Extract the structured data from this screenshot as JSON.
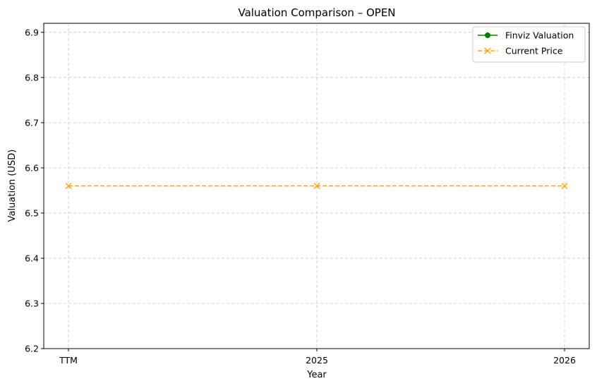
{
  "chart_data": {
    "type": "line",
    "title": "Valuation Comparison – OPEN",
    "xlabel": "Year",
    "ylabel": "Valuation (USD)",
    "categories": [
      "TTM",
      "2025",
      "2026"
    ],
    "ylim": [
      6.2,
      6.92
    ],
    "yticks": [
      "6.2",
      "6.3",
      "6.4",
      "6.5",
      "6.6",
      "6.7",
      "6.8",
      "6.9"
    ],
    "grid": true,
    "legend_position": "top-right",
    "series": [
      {
        "name": "Finviz Valuation",
        "values": [
          null,
          null,
          null
        ],
        "color": "#008000",
        "marker": "circle",
        "linestyle": "solid"
      },
      {
        "name": "Current Price",
        "values": [
          6.56,
          6.56,
          6.56
        ],
        "color": "#FFA500",
        "marker": "x",
        "linestyle": "dashed"
      }
    ]
  }
}
